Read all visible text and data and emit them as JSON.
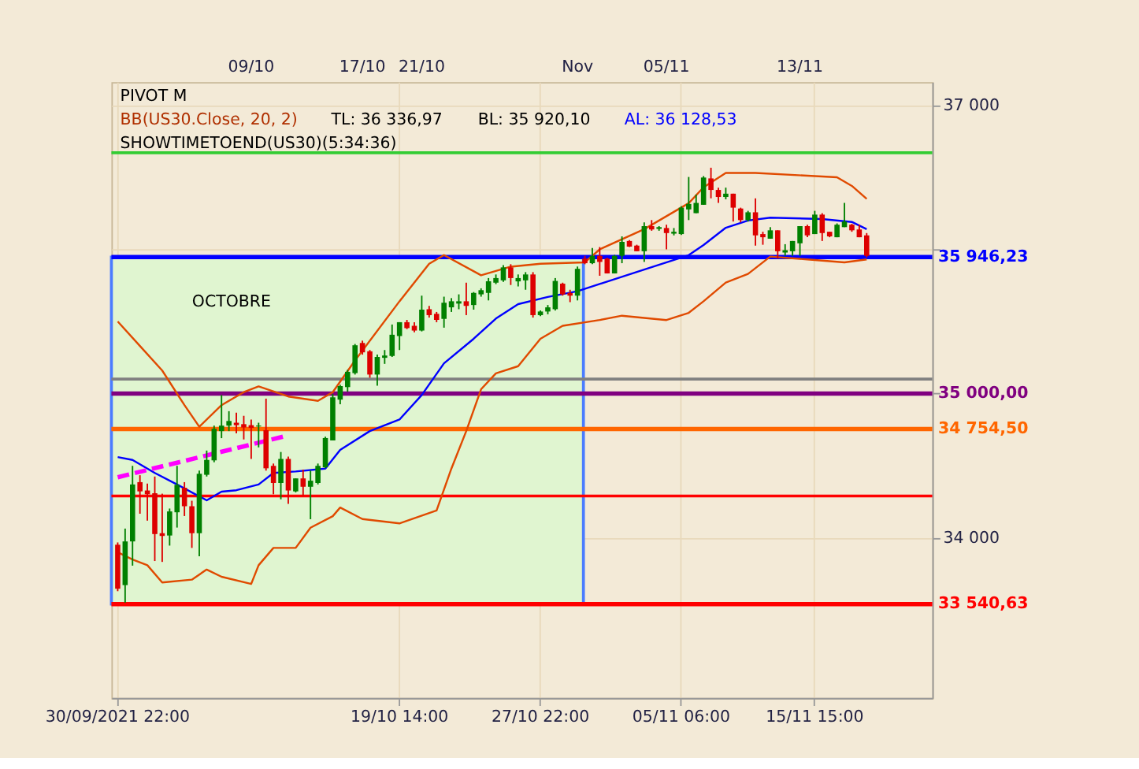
{
  "chart_data": {
    "type": "candlestick",
    "annotations": [
      "PIVOT M",
      "BB(US30.Close, 20, 2)",
      "TL: 36 336,97",
      "BL: 35 920,10",
      "AL: 36 128,53",
      "SHOWTIMETOEND(US30)(5:34:36)",
      "09/10",
      "17/10",
      "21/10",
      "Nov",
      "05/11",
      "13/11"
    ],
    "categories": [
      "30/09/2021 22:00",
      null,
      null,
      null,
      null,
      null,
      null,
      null,
      null,
      null,
      null,
      null,
      null,
      null,
      null,
      null,
      null,
      null,
      null,
      null,
      null,
      null,
      null,
      null,
      null,
      null,
      null,
      null,
      null,
      null,
      null,
      null,
      null,
      null,
      null,
      null,
      null,
      null,
      "19/10 14:00",
      null,
      null,
      null,
      null,
      null,
      null,
      null,
      null,
      null,
      null,
      null,
      null,
      null,
      null,
      null,
      null,
      null,
      null,
      "27/10 22:00",
      null,
      null,
      null,
      null,
      null,
      null,
      null,
      null,
      null,
      null,
      null,
      null,
      null,
      null,
      null,
      null,
      null,
      null,
      "05/11 06:00",
      null,
      null,
      null,
      null,
      null,
      null,
      null,
      null,
      null,
      null,
      null,
      null,
      null,
      null,
      null,
      null,
      null,
      "15/11 15:00",
      null,
      null,
      null,
      null,
      null,
      null,
      null
    ],
    "ohlc": [
      [
        33952,
        33968,
        33630,
        33647
      ],
      [
        33672,
        34064,
        33550,
        33975
      ],
      [
        33975,
        34499,
        33807,
        34370
      ],
      [
        34386,
        34434,
        34167,
        34322
      ],
      [
        34328,
        34376,
        34119,
        34302
      ],
      [
        34309,
        34425,
        33839,
        34026
      ],
      [
        34032,
        34306,
        33833,
        34013
      ],
      [
        34016,
        34203,
        33946,
        34183
      ],
      [
        34177,
        34499,
        34071,
        34367
      ],
      [
        34347,
        34386,
        34151,
        34219
      ],
      [
        34219,
        34257,
        33930,
        34032
      ],
      [
        34032,
        34466,
        33872,
        34444
      ],
      [
        34437,
        34605,
        34425,
        34540
      ],
      [
        34537,
        34778,
        34524,
        34756
      ],
      [
        34740,
        34990,
        34691,
        34778
      ],
      [
        34778,
        34878,
        34740,
        34810
      ],
      [
        34798,
        34868,
        34724,
        34781
      ],
      [
        34788,
        34846,
        34682,
        34765
      ],
      [
        34781,
        34820,
        34547,
        34762
      ],
      [
        34772,
        34798,
        34627,
        34778
      ],
      [
        34746,
        34965,
        34466,
        34482
      ],
      [
        34499,
        34515,
        34302,
        34380
      ],
      [
        34380,
        34595,
        34267,
        34547
      ],
      [
        34547,
        34563,
        34235,
        34328
      ],
      [
        34322,
        34412,
        34315,
        34412
      ],
      [
        34412,
        34473,
        34290,
        34354
      ],
      [
        34354,
        34466,
        34129,
        34396
      ],
      [
        34380,
        34515,
        34370,
        34499
      ],
      [
        34489,
        34701,
        34483,
        34692
      ],
      [
        34675,
        34997,
        34675,
        34974
      ],
      [
        34958,
        35061,
        34926,
        35052
      ],
      [
        35045,
        35164,
        35013,
        35151
      ],
      [
        35142,
        35344,
        35132,
        35335
      ],
      [
        35351,
        35367,
        35270,
        35286
      ],
      [
        35293,
        35302,
        35110,
        35132
      ],
      [
        35132,
        35270,
        35055,
        35254
      ],
      [
        35248,
        35302,
        35206,
        35264
      ],
      [
        35261,
        35479,
        35254,
        35408
      ],
      [
        35399,
        35495,
        35302,
        35495
      ],
      [
        35495,
        35511,
        35447,
        35454
      ],
      [
        35470,
        35495,
        35425,
        35437
      ],
      [
        35437,
        35679,
        35431,
        35582
      ],
      [
        35585,
        35608,
        35527,
        35544
      ],
      [
        35553,
        35566,
        35495,
        35511
      ],
      [
        35518,
        35672,
        35457,
        35630
      ],
      [
        35598,
        35662,
        35566,
        35640
      ],
      [
        35624,
        35688,
        35585,
        35640
      ],
      [
        35640,
        35769,
        35544,
        35608
      ],
      [
        35614,
        35704,
        35582,
        35698
      ],
      [
        35688,
        35730,
        35672,
        35717
      ],
      [
        35698,
        35801,
        35646,
        35778
      ],
      [
        35769,
        35826,
        35759,
        35801
      ],
      [
        35785,
        35891,
        35775,
        35875
      ],
      [
        35875,
        35897,
        35753,
        35801
      ],
      [
        35778,
        35826,
        35743,
        35801
      ],
      [
        35785,
        35842,
        35720,
        35826
      ],
      [
        35826,
        35842,
        35527,
        35544
      ],
      [
        35544,
        35576,
        35537,
        35569
      ],
      [
        35569,
        35614,
        35550,
        35598
      ],
      [
        35585,
        35801,
        35576,
        35781
      ],
      [
        35762,
        35769,
        35679,
        35688
      ],
      [
        35698,
        35720,
        35634,
        35679
      ],
      [
        35679,
        35881,
        35646,
        35865
      ],
      [
        35936,
        35955,
        35897,
        35904
      ],
      [
        35904,
        36010,
        35897,
        35955
      ],
      [
        35955,
        36016,
        35817,
        35913
      ],
      [
        35936,
        35942,
        35833,
        35833
      ],
      [
        35833,
        35962,
        35833,
        35955
      ],
      [
        35955,
        36090,
        35904,
        36052
      ],
      [
        36058,
        36064,
        36016,
        36019
      ],
      [
        36026,
        36032,
        35987,
        35987
      ],
      [
        35987,
        36187,
        35913,
        36161
      ],
      [
        36161,
        36203,
        36129,
        36138
      ],
      [
        36142,
        36161,
        36129,
        36154
      ],
      [
        36148,
        36171,
        36000,
        36113
      ],
      [
        36109,
        36148,
        36097,
        36122
      ],
      [
        36106,
        36299,
        36100,
        36289
      ],
      [
        36277,
        36502,
        36203,
        36315
      ],
      [
        36251,
        36380,
        36251,
        36322
      ],
      [
        36309,
        36508,
        36309,
        36498
      ],
      [
        36492,
        36566,
        36354,
        36412
      ],
      [
        36412,
        36428,
        36322,
        36363
      ],
      [
        36363,
        36428,
        36347,
        36386
      ],
      [
        36386,
        36386,
        36193,
        36289
      ],
      [
        36283,
        36289,
        36187,
        36203
      ],
      [
        36203,
        36267,
        36193,
        36257
      ],
      [
        36257,
        36354,
        36026,
        36097
      ],
      [
        36106,
        36122,
        36032,
        36084
      ],
      [
        36074,
        36154,
        36074,
        36132
      ],
      [
        36132,
        36132,
        35936,
        35987
      ],
      [
        35978,
        36036,
        35955,
        35994
      ],
      [
        35987,
        36058,
        35955,
        36058
      ],
      [
        36042,
        36161,
        35955,
        36161
      ],
      [
        36161,
        36171,
        36084,
        36097
      ],
      [
        36106,
        36267,
        36106,
        36241
      ],
      [
        36241,
        36251,
        36058,
        36113
      ],
      [
        36122,
        36122,
        36084,
        36090
      ],
      [
        36084,
        36180,
        36084,
        36171
      ],
      [
        36154,
        36322,
        36154,
        36193
      ],
      [
        36171,
        36177,
        36122,
        36132
      ],
      [
        36138,
        36171,
        36084,
        36084
      ],
      [
        36097,
        36113,
        35945,
        35955
      ]
    ],
    "colors": [
      "#dd0000",
      "#008000",
      "#008000",
      "#dd0000",
      "#dd0000",
      "#dd0000",
      "#dd0000",
      "#008000",
      "#008000",
      "#dd0000",
      "#dd0000",
      "#008000",
      "#008000",
      "#008000",
      "#008000",
      "#008000",
      "#dd0000",
      "#dd0000",
      "#dd0000",
      "#008000",
      "#dd0000",
      "#dd0000",
      "#008000",
      "#dd0000",
      "#008000",
      "#dd0000",
      "#008000",
      "#008000",
      "#008000",
      "#008000",
      "#008000",
      "#008000",
      "#008000",
      "#dd0000",
      "#dd0000",
      "#008000",
      "#008000",
      "#008000",
      "#008000",
      "#dd0000",
      "#dd0000",
      "#008000",
      "#dd0000",
      "#dd0000",
      "#008000",
      "#008000",
      "#008000",
      "#dd0000",
      "#008000",
      "#008000",
      "#008000",
      "#008000",
      "#008000",
      "#dd0000",
      "#008000",
      "#008000",
      "#dd0000",
      "#008000",
      "#008000",
      "#008000",
      "#dd0000",
      "#dd0000",
      "#008000",
      "#dd0000",
      "#008000",
      "#dd0000",
      "#dd0000",
      "#008000",
      "#008000",
      "#dd0000",
      "#dd0000",
      "#008000",
      "#dd0000",
      "#008000",
      "#dd0000",
      "#008000",
      "#008000",
      "#008000",
      "#008000",
      "#008000",
      "#dd0000",
      "#dd0000",
      "#008000",
      "#dd0000",
      "#dd0000",
      "#008000",
      "#dd0000",
      "#dd0000",
      "#008000",
      "#dd0000",
      "#008000",
      "#008000",
      "#008000",
      "#dd0000",
      "#008000",
      "#dd0000",
      "#dd0000",
      "#008000",
      "#008000",
      "#dd0000",
      "#dd0000",
      "#dd0000"
    ],
    "series": [
      {
        "type": "line",
        "color": "#e04a00",
        "values": [
          35500,
          null,
          null,
          35330,
          null,
          null,
          35160,
          null,
          null,
          34920,
          null,
          34770,
          null,
          null,
          34920,
          null,
          null,
          35010,
          null,
          35050,
          null,
          null,
          null,
          34980,
          null,
          null,
          null,
          34950,
          null,
          35010,
          null,
          null,
          35230,
          null,
          null,
          null,
          null,
          null,
          35640,
          null,
          null,
          null,
          35900,
          null,
          35960,
          null,
          null,
          null,
          null,
          35820,
          null,
          null,
          null,
          35880,
          null,
          null,
          null,
          35900,
          null,
          null,
          null,
          null,
          null,
          35910,
          null,
          36000,
          null,
          null,
          null,
          null,
          null,
          36140,
          null,
          null,
          null,
          null,
          null,
          36320,
          null,
          36430,
          null,
          null,
          36530,
          null,
          null,
          null,
          36530,
          null,
          null,
          null,
          null,
          null,
          null,
          null,
          null,
          null,
          null,
          36500,
          null,
          36440,
          null,
          36350
        ]
      },
      {
        "type": "line",
        "color": "#e04a00",
        "values": [
          33900,
          null,
          33850,
          null,
          33810,
          null,
          33690,
          null,
          null,
          null,
          33710,
          null,
          33780,
          null,
          33730,
          null,
          null,
          null,
          33680,
          33810,
          null,
          33930,
          null,
          null,
          33930,
          null,
          34070,
          null,
          null,
          34150,
          34210,
          null,
          null,
          34130,
          null,
          null,
          null,
          null,
          34100,
          null,
          null,
          null,
          null,
          34190,
          null,
          34480,
          null,
          34740,
          null,
          35030,
          null,
          35140,
          null,
          null,
          35190,
          null,
          null,
          35380,
          null,
          null,
          35470,
          null,
          null,
          null,
          null,
          35510,
          null,
          null,
          35540,
          null,
          null,
          null,
          null,
          null,
          35510,
          null,
          null,
          35560,
          null,
          35640,
          null,
          null,
          35770,
          null,
          null,
          35830,
          null,
          null,
          35950,
          null,
          null,
          null,
          null,
          35930,
          null,
          null,
          null,
          null,
          35910,
          null,
          null,
          35930
        ]
      },
      {
        "type": "line",
        "color": "#0000ff",
        "values": [
          34560,
          null,
          34540,
          null,
          null,
          34450,
          null,
          null,
          34370,
          null,
          null,
          null,
          34260,
          null,
          34320,
          null,
          34330,
          null,
          null,
          34370,
          null,
          34450,
          null,
          null,
          34460,
          null,
          null,
          null,
          34480,
          null,
          34610,
          null,
          null,
          null,
          34740,
          null,
          null,
          null,
          34820,
          null,
          null,
          34990,
          null,
          null,
          35210,
          null,
          null,
          null,
          35380,
          null,
          null,
          35520,
          null,
          null,
          35620,
          null,
          null,
          null,
          35670,
          null,
          null,
          null,
          35710,
          null,
          null,
          35760,
          null,
          null,
          null,
          null,
          null,
          35860,
          null,
          null,
          null,
          null,
          null,
          35960,
          null,
          36030,
          null,
          null,
          36150,
          null,
          null,
          36200,
          null,
          null,
          36220,
          null,
          null,
          null,
          null,
          null,
          null,
          36210,
          null,
          null,
          null,
          36190,
          null,
          36140
        ]
      },
      {
        "type": "line",
        "color": "#ff00ff",
        "line_style": "dashed",
        "values": [
          34420,
          null,
          null,
          null,
          null,
          null,
          null,
          null,
          null,
          null,
          null,
          null,
          null,
          null,
          null,
          null,
          null,
          null,
          null,
          null,
          null,
          null,
          null,
          34710,
          null,
          null,
          null,
          null,
          null,
          null,
          null,
          null,
          null,
          null,
          null,
          null,
          null,
          null,
          null,
          null,
          null,
          null,
          null,
          null,
          null,
          null,
          null,
          null,
          null,
          null,
          null,
          null,
          null,
          null,
          null,
          null,
          null,
          null,
          null,
          null,
          null,
          null,
          null,
          null,
          null,
          null,
          null,
          null,
          null,
          null,
          null,
          null,
          null,
          null,
          null,
          null,
          null,
          null,
          null,
          null,
          null,
          null,
          null,
          null,
          null,
          null,
          null,
          null,
          null,
          null,
          null,
          null,
          null,
          null,
          null,
          null,
          null,
          null,
          null,
          null,
          null,
          null
        ]
      }
    ],
    "ref_lines": [
      {
        "axis": "y",
        "value": 35946.23,
        "label": "35 946,23",
        "color": "#0000ff"
      },
      {
        "axis": "y",
        "value": 35000,
        "label": "35 000,00",
        "color": "#800080"
      },
      {
        "axis": "y",
        "value": 34754.5,
        "label": "34 754,50",
        "color": "#ff6600"
      },
      {
        "axis": "y",
        "value": 33540.63,
        "label": "33 540,63",
        "color": "#ff0000"
      },
      {
        "axis": "y",
        "value": 35100,
        "color": "#808080"
      },
      {
        "axis": "y",
        "value": 34290,
        "color": "#ff0000"
      },
      {
        "axis": "y",
        "value": 36670,
        "color": "#33cc33"
      }
    ],
    "bands": [
      {
        "axis": "y",
        "from": 33540.63,
        "to": 35946.23,
        "label": "OCTOBRE",
        "color": "#e0f5d0"
      }
    ],
    "ylim": [
      32890,
      37160
    ],
    "yticks": [
      {
        "value": 34000,
        "label": "34 000"
      },
      {
        "value": 35000,
        "label": null
      },
      {
        "value": 36000,
        "label": null
      },
      {
        "value": 37000,
        "label": "37 000"
      }
    ],
    "grid": true
  }
}
